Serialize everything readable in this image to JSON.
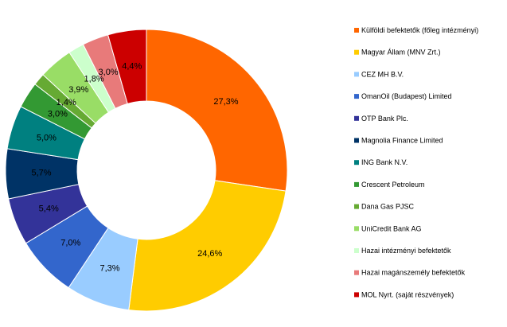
{
  "chart_data": {
    "type": "pie",
    "variant": "donut",
    "legend_position": "right",
    "categories": [
      "Külföldi befektetők (főleg intézményi)",
      "Magyar Állam (MNV Zrt.)",
      "CEZ MH B.V.",
      "OmanOil (Budapest) Limited",
      "OTP Bank Plc.",
      "Magnolia Finance Limited",
      "ING Bank N.V.",
      "Crescent Petroleum",
      "Dana Gas PJSC",
      "UniCredit Bank AG",
      "Hazai intézményi befektetők",
      "Hazai magánszemély befektetők",
      "MOL Nyrt. (saját részvények)"
    ],
    "values": [
      27.3,
      24.6,
      7.3,
      7.0,
      5.4,
      5.7,
      5.0,
      3.0,
      1.4,
      3.9,
      1.8,
      3.0,
      4.4
    ],
    "labels": [
      "27,3%",
      "24,6%",
      "7,3%",
      "7,0%",
      "5,4%",
      "5,7%",
      "5,0%",
      "3,0%",
      "1,4%",
      "3,9%",
      "1,8%",
      "3,0%",
      "4,4%"
    ],
    "colors": [
      "#FF6600",
      "#FFCC00",
      "#99CCFF",
      "#3366CC",
      "#333399",
      "#003366",
      "#008080",
      "#339933",
      "#66AA33",
      "#99DD66",
      "#CCFFCC",
      "#E87A7A",
      "#CC0000"
    ]
  }
}
